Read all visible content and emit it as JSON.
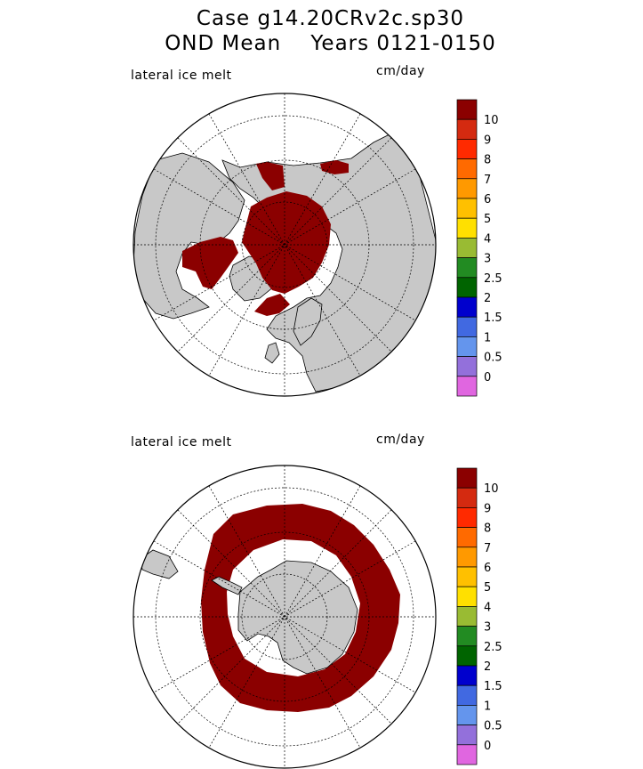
{
  "title": {
    "line1": "Case g14.20CRv2c.sp30",
    "line2": "OND Mean    Years 0121-0150"
  },
  "colors": {
    "land": "#c8c8c8",
    "ice_melt_max": "#8b0000"
  },
  "legend_levels": [
    {
      "label": "10",
      "color": "#8b0000"
    },
    {
      "label": "9",
      "color": "#d42a10"
    },
    {
      "label": "8",
      "color": "#ff2a00"
    },
    {
      "label": "7",
      "color": "#ff6a00"
    },
    {
      "label": "6",
      "color": "#ff9900"
    },
    {
      "label": "5",
      "color": "#ffc000"
    },
    {
      "label": "4",
      "color": "#ffe000"
    },
    {
      "label": "3",
      "color": "#99bb33"
    },
    {
      "label": "2.5",
      "color": "#228b22"
    },
    {
      "label": "2",
      "color": "#006400"
    },
    {
      "label": "1.5",
      "color": "#0000cd"
    },
    {
      "label": "1",
      "color": "#4169e1"
    },
    {
      "label": "0.5",
      "color": "#6495ed"
    },
    {
      "label": "0",
      "color": "#9370db"
    },
    {
      "label": "",
      "color": "#e066e0"
    }
  ],
  "panels": [
    {
      "id": "north",
      "label": "lateral ice melt",
      "units": "cm/day",
      "hemisphere": "Northern"
    },
    {
      "id": "south",
      "label": "lateral ice melt",
      "units": "cm/day",
      "hemisphere": "Southern"
    }
  ]
}
